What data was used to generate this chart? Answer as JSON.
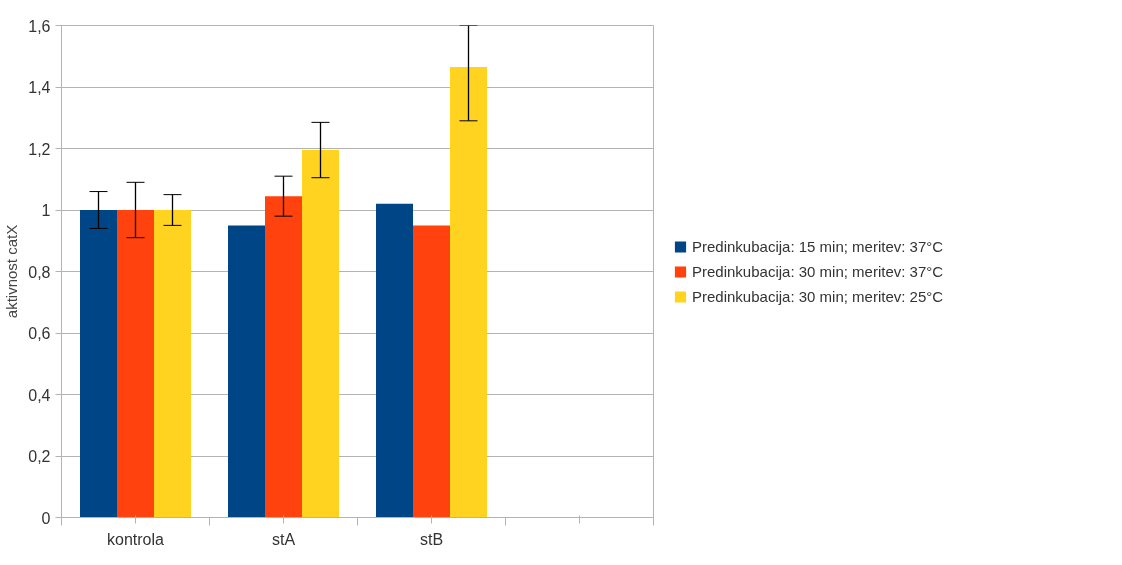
{
  "chart_data": {
    "type": "bar",
    "ylabel": "aktivnost catX",
    "categories": [
      "kontrola",
      "stA",
      "stB",
      null
    ],
    "series": [
      {
        "name": "Predinkubacija: 15 min; meritev: 37°C",
        "color": "#004586",
        "values": [
          1.0,
          0.95,
          1.02,
          null
        ],
        "errors": [
          0.06,
          null,
          null,
          null
        ]
      },
      {
        "name": "Predinkubacija: 30 min; meritev: 37°C",
        "color": "#ff420e",
        "values": [
          1.0,
          1.045,
          0.95,
          null
        ],
        "errors": [
          0.09,
          0.065,
          null,
          null
        ]
      },
      {
        "name": "Predinkubacija: 30 min; meritev: 25°C",
        "color": "#ffd320",
        "values": [
          1.0,
          1.195,
          1.465,
          null
        ],
        "errors": [
          0.05,
          0.09,
          [
            1.29,
            1.6
          ],
          null
        ]
      }
    ],
    "ylim": [
      0,
      1.6
    ],
    "yticks": [
      {
        "value": 0,
        "label": "0"
      },
      {
        "value": 0.2,
        "label": "0,2"
      },
      {
        "value": 0.4,
        "label": "0,4"
      },
      {
        "value": 0.6,
        "label": "0,6"
      },
      {
        "value": 0.8,
        "label": "0,8"
      },
      {
        "value": 1,
        "label": "1"
      },
      {
        "value": 1.2,
        "label": "1,2"
      },
      {
        "value": 1.4,
        "label": "1,4"
      },
      {
        "value": 1.6,
        "label": "1,6"
      }
    ],
    "grid": "y",
    "legend": "right"
  }
}
